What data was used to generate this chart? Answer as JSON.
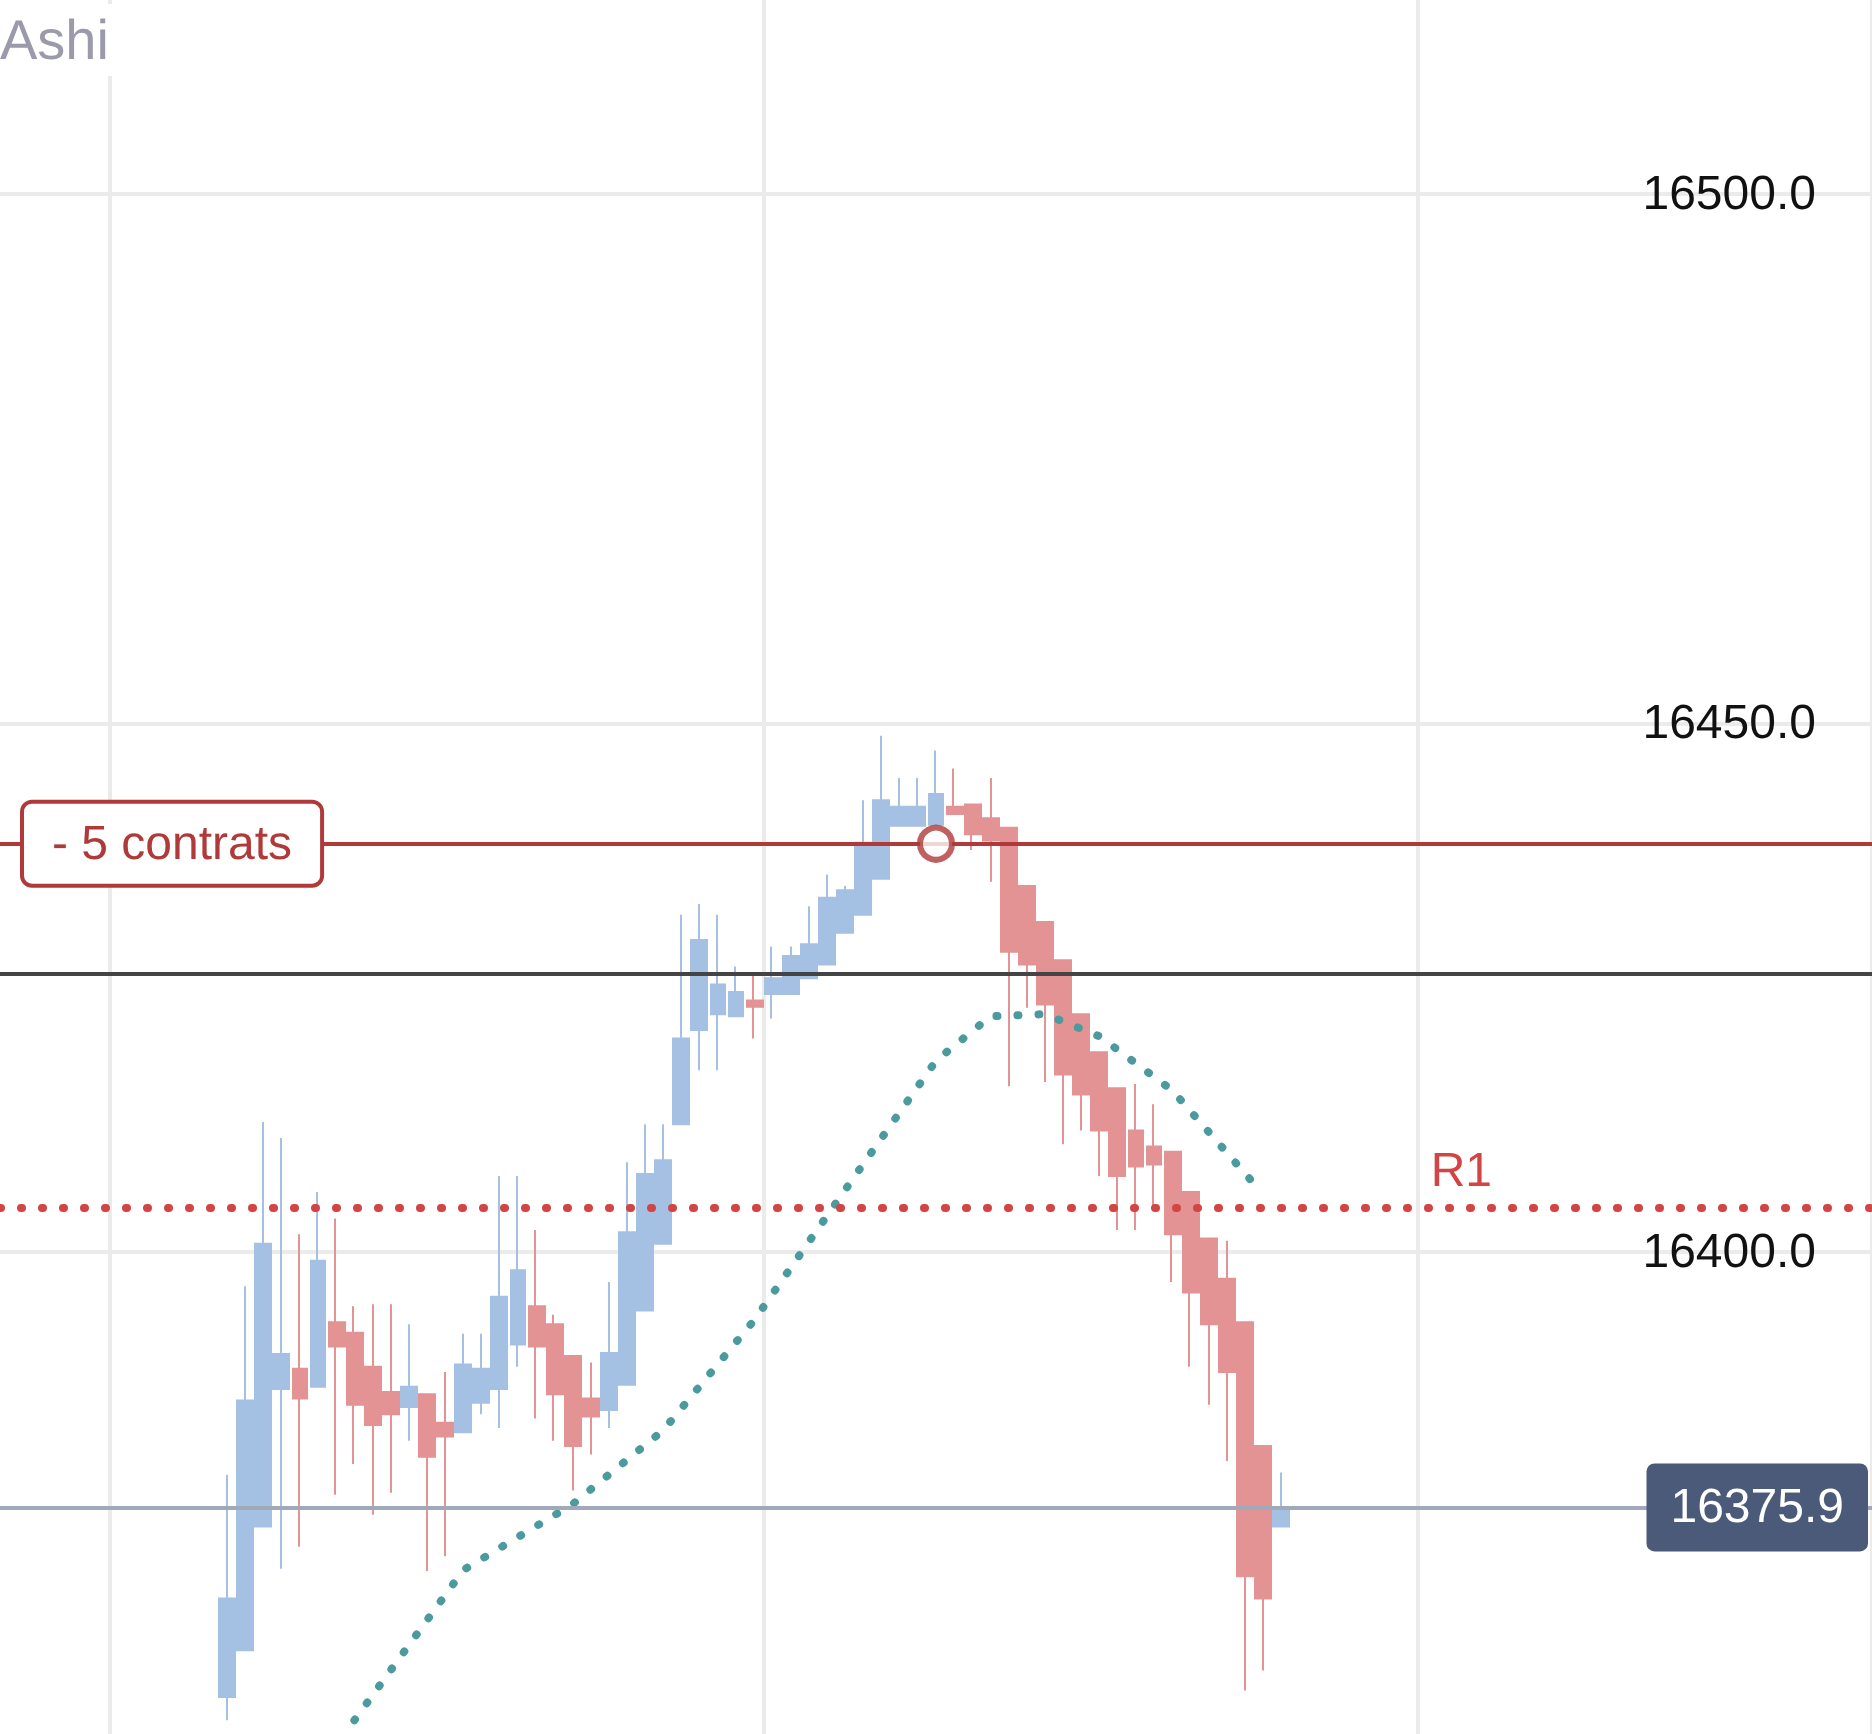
{
  "chart_data": {
    "type": "candlestick",
    "title": "Ashi",
    "categories": [
      null,
      null,
      null,
      null,
      null,
      null,
      null,
      null,
      null,
      null,
      null,
      null,
      null,
      null,
      null,
      null,
      null,
      null,
      null,
      null,
      null,
      null,
      null,
      null,
      null,
      null,
      null,
      null,
      null,
      null,
      null,
      null,
      null,
      null,
      null,
      null,
      null,
      null,
      null,
      null,
      null,
      null,
      null,
      null,
      null,
      null,
      null,
      null,
      null,
      null,
      null,
      null,
      null,
      null,
      null,
      null,
      null,
      null,
      null,
      null,
      null,
      null,
      null,
      null,
      null,
      null,
      null,
      null,
      null,
      null,
      null,
      null,
      null,
      null,
      null,
      null,
      null,
      null,
      null,
      null,
      null,
      null,
      null,
      null,
      null,
      null,
      null,
      null,
      null,
      null,
      null,
      null,
      null,
      null,
      null,
      null,
      null,
      null,
      null,
      null,
      null,
      null,
      null
    ],
    "colors": [
      null,
      null,
      null,
      null,
      null,
      null,
      null,
      null,
      null,
      null,
      null,
      null,
      "#a4c0e3",
      "#a4c0e3",
      "#a4c0e3",
      "#a4c0e3",
      "#e39393",
      "#a4c0e3",
      "#e39393",
      "#e39393",
      "#e39393",
      "#e39393",
      "#a4c0e3",
      "#e39393",
      "#e39393",
      "#a4c0e3",
      "#a4c0e3",
      "#a4c0e3",
      "#a4c0e3",
      "#e39393",
      "#e39393",
      "#e39393",
      "#e39393",
      "#a4c0e3",
      "#a4c0e3",
      "#a4c0e3",
      "#a4c0e3",
      "#a4c0e3",
      "#a4c0e3",
      "#a4c0e3",
      "#a4c0e3",
      "#e39393",
      "#a4c0e3",
      "#a4c0e3",
      "#a4c0e3",
      "#a4c0e3",
      "#a4c0e3",
      "#a4c0e3",
      "#a4c0e3",
      "#a4c0e3",
      "#a4c0e3",
      "#a4c0e3",
      "#e39393",
      "#e39393",
      "#e39393",
      "#e39393",
      "#e39393",
      "#e39393",
      "#e39393",
      "#e39393",
      "#e39393",
      "#e39393",
      "#e39393",
      "#e39393",
      "#e39393",
      "#e39393",
      "#e39393",
      "#e39393",
      "#e39393",
      "#e39393",
      "#a4c0e3",
      null,
      null,
      null,
      null,
      null,
      null,
      null,
      null,
      null,
      null,
      null,
      null,
      null,
      null,
      null,
      null,
      null,
      null,
      null,
      null,
      null,
      null,
      null,
      null,
      null,
      null,
      null,
      null,
      null,
      null,
      null,
      null
    ],
    "ohlc": [
      null,
      null,
      null,
      null,
      null,
      null,
      null,
      null,
      null,
      null,
      null,
      null,
      [
        16358.0,
        16379.0,
        16355.8,
        16367.3
      ],
      [
        16362.4,
        16396.8,
        16362.4,
        16386.0
      ],
      [
        16374.1,
        16412.3,
        16374.1,
        16400.8
      ],
      [
        16387.1,
        16410.8,
        16370.1,
        16390.4
      ],
      [
        16389.0,
        16401.7,
        16372.2,
        16386.2
      ],
      [
        16387.3,
        16405.7,
        16387.3,
        16399.2
      ],
      [
        16393.4,
        16403.2,
        16377.1,
        16391.1
      ],
      [
        16392.4,
        16394.9,
        16380.0,
        16385.6
      ],
      [
        16389.2,
        16395.1,
        16375.2,
        16383.7
      ],
      [
        16386.8,
        16395.1,
        16377.3,
        16384.7
      ],
      [
        16385.4,
        16393.2,
        16382.2,
        16387.3
      ],
      [
        16386.6,
        16386.6,
        16369.9,
        16380.7
      ],
      [
        16383.9,
        16388.7,
        16371.3,
        16382.6
      ],
      [
        16383.0,
        16392.3,
        16383.0,
        16389.4
      ],
      [
        16385.8,
        16392.3,
        16384.7,
        16389.0
      ],
      [
        16387.1,
        16407.2,
        16383.4,
        16395.8
      ],
      [
        16391.3,
        16407.2,
        16389.2,
        16398.3
      ],
      [
        16394.9,
        16402.1,
        16384.3,
        16391.1
      ],
      [
        16393.2,
        16394.1,
        16382.2,
        16386.6
      ],
      [
        16390.2,
        16390.2,
        16377.5,
        16381.7
      ],
      [
        16386.2,
        16389.6,
        16380.9,
        16384.5
      ],
      [
        16385.1,
        16397.2,
        16383.4,
        16390.5
      ],
      [
        16387.5,
        16408.5,
        16387.5,
        16401.9
      ],
      [
        16394.5,
        16412.1,
        16394.5,
        16407.4
      ],
      [
        16400.8,
        16412.1,
        16400.8,
        16408.7
      ],
      [
        16412.1,
        16431.9,
        16412.1,
        16420.2
      ],
      [
        16421.0,
        16432.9,
        16417.2,
        16429.5
      ],
      [
        16422.5,
        16431.9,
        16417.2,
        16425.3
      ],
      [
        16422.3,
        16427.0,
        16422.3,
        16424.6
      ],
      [
        16423.8,
        16426.1,
        16420.2,
        16423.2
      ],
      [
        16424.4,
        16428.9,
        16422.1,
        16425.9
      ],
      [
        16424.4,
        16428.9,
        16424.4,
        16428.0
      ],
      [
        16425.9,
        16432.7,
        16425.9,
        16429.1
      ],
      [
        16427.2,
        16435.7,
        16427.2,
        16433.5
      ],
      [
        16430.2,
        16434.6,
        16430.2,
        16434.2
      ],
      [
        16431.9,
        16442.7,
        16431.9,
        16438.7
      ],
      [
        16435.3,
        16448.8,
        16435.3,
        16442.7
      ],
      [
        16440.3,
        16444.8,
        16440.3,
        16442.1
      ],
      [
        16440.3,
        16444.8,
        16440.3,
        16442.1
      ],
      [
        16440.4,
        16447.4,
        16440.4,
        16443.3
      ],
      [
        16442.1,
        16445.7,
        16441.4,
        16441.4
      ],
      [
        16442.3,
        16442.3,
        16438.0,
        16439.5
      ],
      [
        16441.0,
        16444.8,
        16435.0,
        16438.9
      ],
      [
        16440.1,
        16440.1,
        16415.7,
        16428.4
      ],
      [
        16434.6,
        16434.6,
        16423.1,
        16427.2
      ],
      [
        16431.2,
        16431.2,
        16416.1,
        16423.4
      ],
      [
        16427.6,
        16427.6,
        16410.2,
        16416.8
      ],
      [
        16422.5,
        16422.5,
        16411.5,
        16414.9
      ],
      [
        16418.9,
        16418.9,
        16407.2,
        16411.5
      ],
      [
        16415.5,
        16415.5,
        16402.1,
        16407.2
      ],
      [
        16411.5,
        16415.9,
        16402.1,
        16408.1
      ],
      [
        16410.0,
        16414.0,
        16404.0,
        16408.3
      ],
      [
        16409.5,
        16409.5,
        16397.2,
        16401.7
      ],
      [
        16405.7,
        16405.7,
        16389.2,
        16396.2
      ],
      [
        16401.3,
        16401.3,
        16385.6,
        16393.2
      ],
      [
        16397.5,
        16401.1,
        16380.3,
        16388.7
      ],
      [
        16393.4,
        16393.4,
        16358.6,
        16369.4
      ],
      [
        16381.7,
        16381.7,
        16360.5,
        16367.3
      ],
      [
        16374.1,
        16379.2,
        16374.1,
        16375.9
      ],
      null,
      null,
      null,
      null,
      null,
      null,
      null,
      null,
      null,
      null,
      null,
      null,
      null,
      null,
      null,
      null,
      null,
      null,
      null,
      null,
      null,
      null,
      null,
      null,
      null,
      null,
      null,
      null,
      null,
      null,
      null,
      null
    ],
    "series": [
      {
        "type": "line",
        "color": "#4a9a9e",
        "line_style": "dotted",
        "values": [
          null,
          null,
          null,
          null,
          null,
          null,
          null,
          null,
          null,
          null,
          null,
          null,
          null,
          null,
          null,
          null,
          null,
          null,
          null,
          16355.8,
          null,
          null,
          null,
          null,
          null,
          16370.0,
          null,
          null,
          null,
          null,
          null,
          16376.2,
          null,
          null,
          null,
          null,
          16383.2,
          null,
          null,
          null,
          null,
          16393.6,
          null,
          null,
          null,
          null,
          16405.9,
          null,
          null,
          null,
          null,
          16418.1,
          null,
          null,
          16422.3,
          null,
          null,
          16422.5,
          null,
          null,
          16420.4,
          null,
          null,
          null,
          16415.3,
          null,
          null,
          null,
          null,
          16405.5,
          null,
          null,
          null,
          null,
          null,
          null,
          null,
          null,
          null,
          null,
          null,
          null,
          null,
          null,
          null,
          null,
          null,
          null,
          null,
          null,
          null,
          null,
          null,
          null,
          null,
          null,
          null,
          null,
          null,
          null,
          null,
          null,
          null
        ]
      },
      {
        "type": "scatter",
        "color": "#b03a3a",
        "marker": "circle",
        "values": [
          null,
          null,
          null,
          null,
          null,
          null,
          null,
          null,
          null,
          null,
          null,
          null,
          null,
          null,
          null,
          null,
          null,
          null,
          null,
          null,
          null,
          null,
          null,
          null,
          null,
          null,
          null,
          null,
          null,
          null,
          null,
          null,
          null,
          null,
          null,
          null,
          null,
          null,
          null,
          null,
          null,
          null,
          null,
          null,
          null,
          null,
          null,
          null,
          null,
          null,
          null,
          16438.6,
          null,
          null,
          null,
          null,
          null,
          null,
          null,
          null,
          null,
          null,
          null,
          null,
          null,
          null,
          null,
          null,
          null,
          null,
          null,
          null,
          null,
          null,
          null,
          null,
          null,
          null,
          null,
          null,
          null,
          null,
          null,
          null,
          null,
          null,
          null,
          null,
          null,
          null,
          null,
          null,
          null,
          null,
          null,
          null,
          null,
          null,
          null,
          null,
          null,
          null,
          null
        ]
      }
    ],
    "ref_lines": [
      {
        "axis": "y",
        "value": 16404.3,
        "label": "R1",
        "color": "#d34545",
        "line_style": "dotted"
      },
      {
        "axis": "y",
        "value": 16426.3,
        "color": "#444444",
        "line_style": "solid"
      },
      {
        "axis": "y",
        "value": 16438.6,
        "label": "- 5 contrats",
        "color": "#b03a3a",
        "line_style": "solid"
      },
      {
        "axis": "y",
        "value": 16375.9,
        "label": "16375.9",
        "color": "#a0a8ba",
        "line_style": "solid"
      }
    ],
    "ylim": [
      16354.5,
      16518.3
    ],
    "yticks": [
      {
        "value": 16400,
        "label": "16400.0"
      },
      {
        "value": 16450,
        "label": "16450.0"
      },
      {
        "value": 16500,
        "label": "16500.0"
      }
    ],
    "grid": true,
    "tick_labels": "y"
  }
}
